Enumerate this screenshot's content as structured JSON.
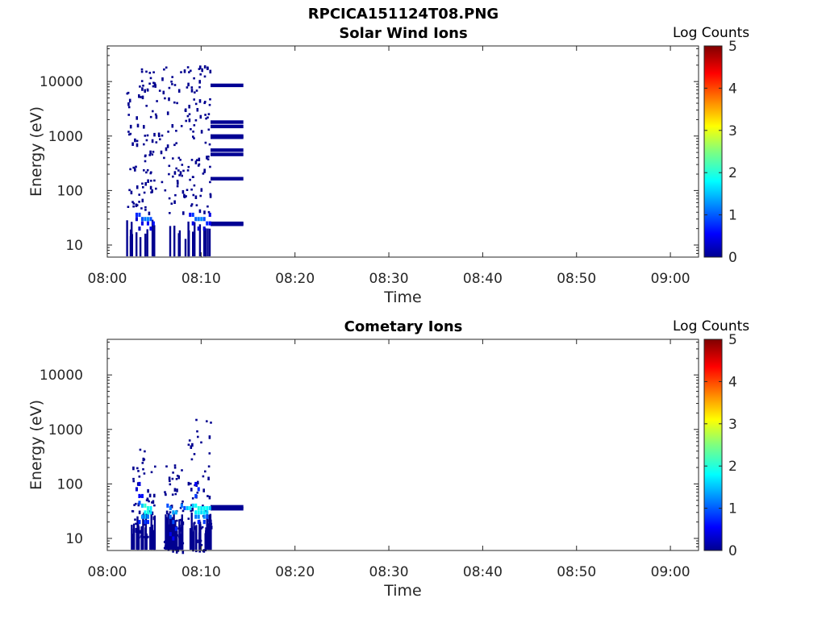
{
  "figure_title": "RPCICA151124T08.PNG",
  "chart_data": [
    {
      "type": "heatmap",
      "title": "Solar Wind Ions",
      "xlabel": "Time",
      "ylabel": "Energy (eV)",
      "xlim": [
        "08:00",
        "09:03"
      ],
      "xticks": [
        "08:00",
        "08:10",
        "08:20",
        "08:30",
        "08:40",
        "08:50",
        "09:00"
      ],
      "ylim": [
        6,
        45000
      ],
      "yscale": "log",
      "yticks": [
        "10",
        "100",
        "1000",
        "10000"
      ],
      "colorbar": {
        "label": "Log Counts",
        "ticks": [
          "0",
          "1",
          "2",
          "3",
          "4",
          "5"
        ],
        "range": [
          0,
          5
        ],
        "colormap": "jet"
      },
      "observations": [
        {
          "time_start": "08:02",
          "time_end": "08:11",
          "energy_range_eV": [
            6,
            20000
          ],
          "log_counts_max": 1.3,
          "description": "sparse single counts at high energy, dense band 20-45 eV"
        },
        {
          "time_start": "08:11",
          "time_end": "08:14.5",
          "energy_bands_eV": [
            8500,
            1800,
            1500,
            1000,
            950,
            550,
            460,
            165,
            25,
            24
          ],
          "log_counts": 0.1
        }
      ],
      "cells": [
        [
          3.0,
          36,
          0.8
        ],
        [
          3.3,
          36,
          0.9
        ],
        [
          3.6,
          30,
          1.0
        ],
        [
          3.9,
          30,
          1.2
        ],
        [
          4.2,
          30,
          1.3
        ],
        [
          4.5,
          30,
          1.0
        ],
        [
          4.8,
          25,
          0.7
        ],
        [
          3.0,
          30,
          0.4
        ],
        [
          3.6,
          25,
          0.5
        ],
        [
          4.2,
          25,
          0.6
        ],
        [
          4.5,
          20,
          0.5
        ],
        [
          3.3,
          20,
          0.3
        ],
        [
          8.7,
          36,
          0.6
        ],
        [
          9.0,
          36,
          0.9
        ],
        [
          9.3,
          30,
          1.1
        ],
        [
          9.6,
          30,
          1.2
        ],
        [
          9.9,
          30,
          1.3
        ],
        [
          10.2,
          30,
          1.0
        ],
        [
          10.5,
          25,
          0.8
        ],
        [
          10.8,
          25,
          0.6
        ],
        [
          9.0,
          25,
          0.5
        ],
        [
          9.6,
          20,
          0.4
        ],
        [
          10.2,
          20,
          0.4
        ],
        [
          10.8,
          36,
          0.5
        ]
      ]
    },
    {
      "type": "heatmap",
      "title": "Cometary Ions",
      "xlabel": "Time",
      "ylabel": "Energy (eV)",
      "xlim": [
        "08:00",
        "09:03"
      ],
      "xticks": [
        "08:00",
        "08:10",
        "08:20",
        "08:30",
        "08:40",
        "08:50",
        "09:00"
      ],
      "ylim": [
        6,
        45000
      ],
      "yscale": "log",
      "yticks": [
        "10",
        "100",
        "1000",
        "10000"
      ],
      "colorbar": {
        "label": "Log Counts",
        "ticks": [
          "0",
          "1",
          "2",
          "3",
          "4",
          "5"
        ],
        "range": [
          0,
          5
        ],
        "colormap": "jet"
      },
      "observations": [
        {
          "time_start": "08:02.5",
          "time_end": "08:05",
          "energy_range_eV": [
            10,
            700
          ],
          "log_counts_max": 2.1
        },
        {
          "time_start": "08:06",
          "time_end": "08:08",
          "energy_range_eV": [
            6,
            250
          ],
          "log_counts_max": 1.5
        },
        {
          "time_start": "08:08.5",
          "time_end": "08:11",
          "energy_range_eV": [
            6,
            1800
          ],
          "log_counts_max": 2.0
        },
        {
          "time_start": "08:11",
          "time_end": "08:14.5",
          "energy_bands_eV": [
            38,
            35
          ],
          "log_counts": 0.1
        }
      ],
      "cells": [
        [
          3.3,
          45,
          1.0
        ],
        [
          3.6,
          40,
          1.6
        ],
        [
          3.9,
          40,
          2.1
        ],
        [
          4.2,
          36,
          2.0
        ],
        [
          4.5,
          36,
          1.8
        ],
        [
          3.9,
          30,
          1.9
        ],
        [
          4.2,
          30,
          2.0
        ],
        [
          4.5,
          30,
          1.7
        ],
        [
          3.6,
          25,
          1.3
        ],
        [
          3.9,
          25,
          1.5
        ],
        [
          4.2,
          25,
          1.2
        ],
        [
          3.3,
          20,
          0.8
        ],
        [
          3.9,
          20,
          0.9
        ],
        [
          4.2,
          20,
          0.8
        ],
        [
          3.3,
          60,
          0.6
        ],
        [
          3.6,
          60,
          0.7
        ],
        [
          3.0,
          80,
          0.4
        ],
        [
          3.3,
          100,
          0.5
        ],
        [
          6.3,
          40,
          1.0
        ],
        [
          6.6,
          36,
          1.2
        ],
        [
          6.9,
          30,
          1.4
        ],
        [
          7.2,
          30,
          1.5
        ],
        [
          6.6,
          25,
          1.1
        ],
        [
          6.9,
          20,
          1.0
        ],
        [
          7.2,
          15,
          0.8
        ],
        [
          6.9,
          10,
          0.6
        ],
        [
          6.6,
          12,
          0.5
        ],
        [
          9.0,
          40,
          1.6
        ],
        [
          9.3,
          40,
          1.9
        ],
        [
          9.6,
          36,
          2.0
        ],
        [
          9.9,
          36,
          1.8
        ],
        [
          10.2,
          36,
          1.9
        ],
        [
          10.5,
          36,
          1.9
        ],
        [
          10.8,
          36,
          1.6
        ],
        [
          9.3,
          30,
          1.8
        ],
        [
          9.6,
          30,
          1.9
        ],
        [
          9.9,
          30,
          1.7
        ],
        [
          10.2,
          30,
          1.8
        ],
        [
          10.5,
          30,
          1.6
        ],
        [
          9.3,
          25,
          1.2
        ],
        [
          9.6,
          25,
          1.3
        ],
        [
          10.2,
          25,
          1.3
        ],
        [
          10.5,
          25,
          1.0
        ],
        [
          9.6,
          20,
          0.8
        ],
        [
          10.2,
          20,
          0.9
        ],
        [
          8.4,
          36,
          1.6
        ],
        [
          8.7,
          36,
          1.8
        ],
        [
          7.8,
          40,
          1.2
        ],
        [
          8.1,
          36,
          1.0
        ],
        [
          9.3,
          60,
          0.9
        ],
        [
          9.6,
          80,
          0.8
        ],
        [
          9.3,
          100,
          0.6
        ]
      ]
    }
  ]
}
